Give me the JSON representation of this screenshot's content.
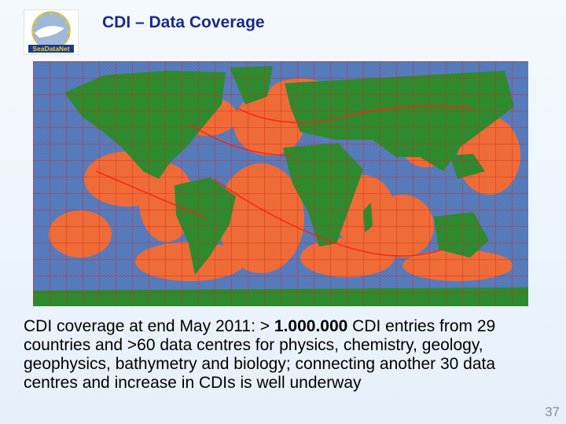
{
  "header": {
    "title": "CDI – Data Coverage",
    "logo_text": "SeaDataNet"
  },
  "body": {
    "runs": [
      "CDI coverage at end May 2011: > ",
      "1.000.000",
      " CDI entries from 29 countries and >60 data centres for physics, chemistry, geology, geophysics, bathymetry and biology; connecting another 30 data centres and increase in CDIs is well underway"
    ]
  },
  "footer": {
    "page_number": "37"
  }
}
